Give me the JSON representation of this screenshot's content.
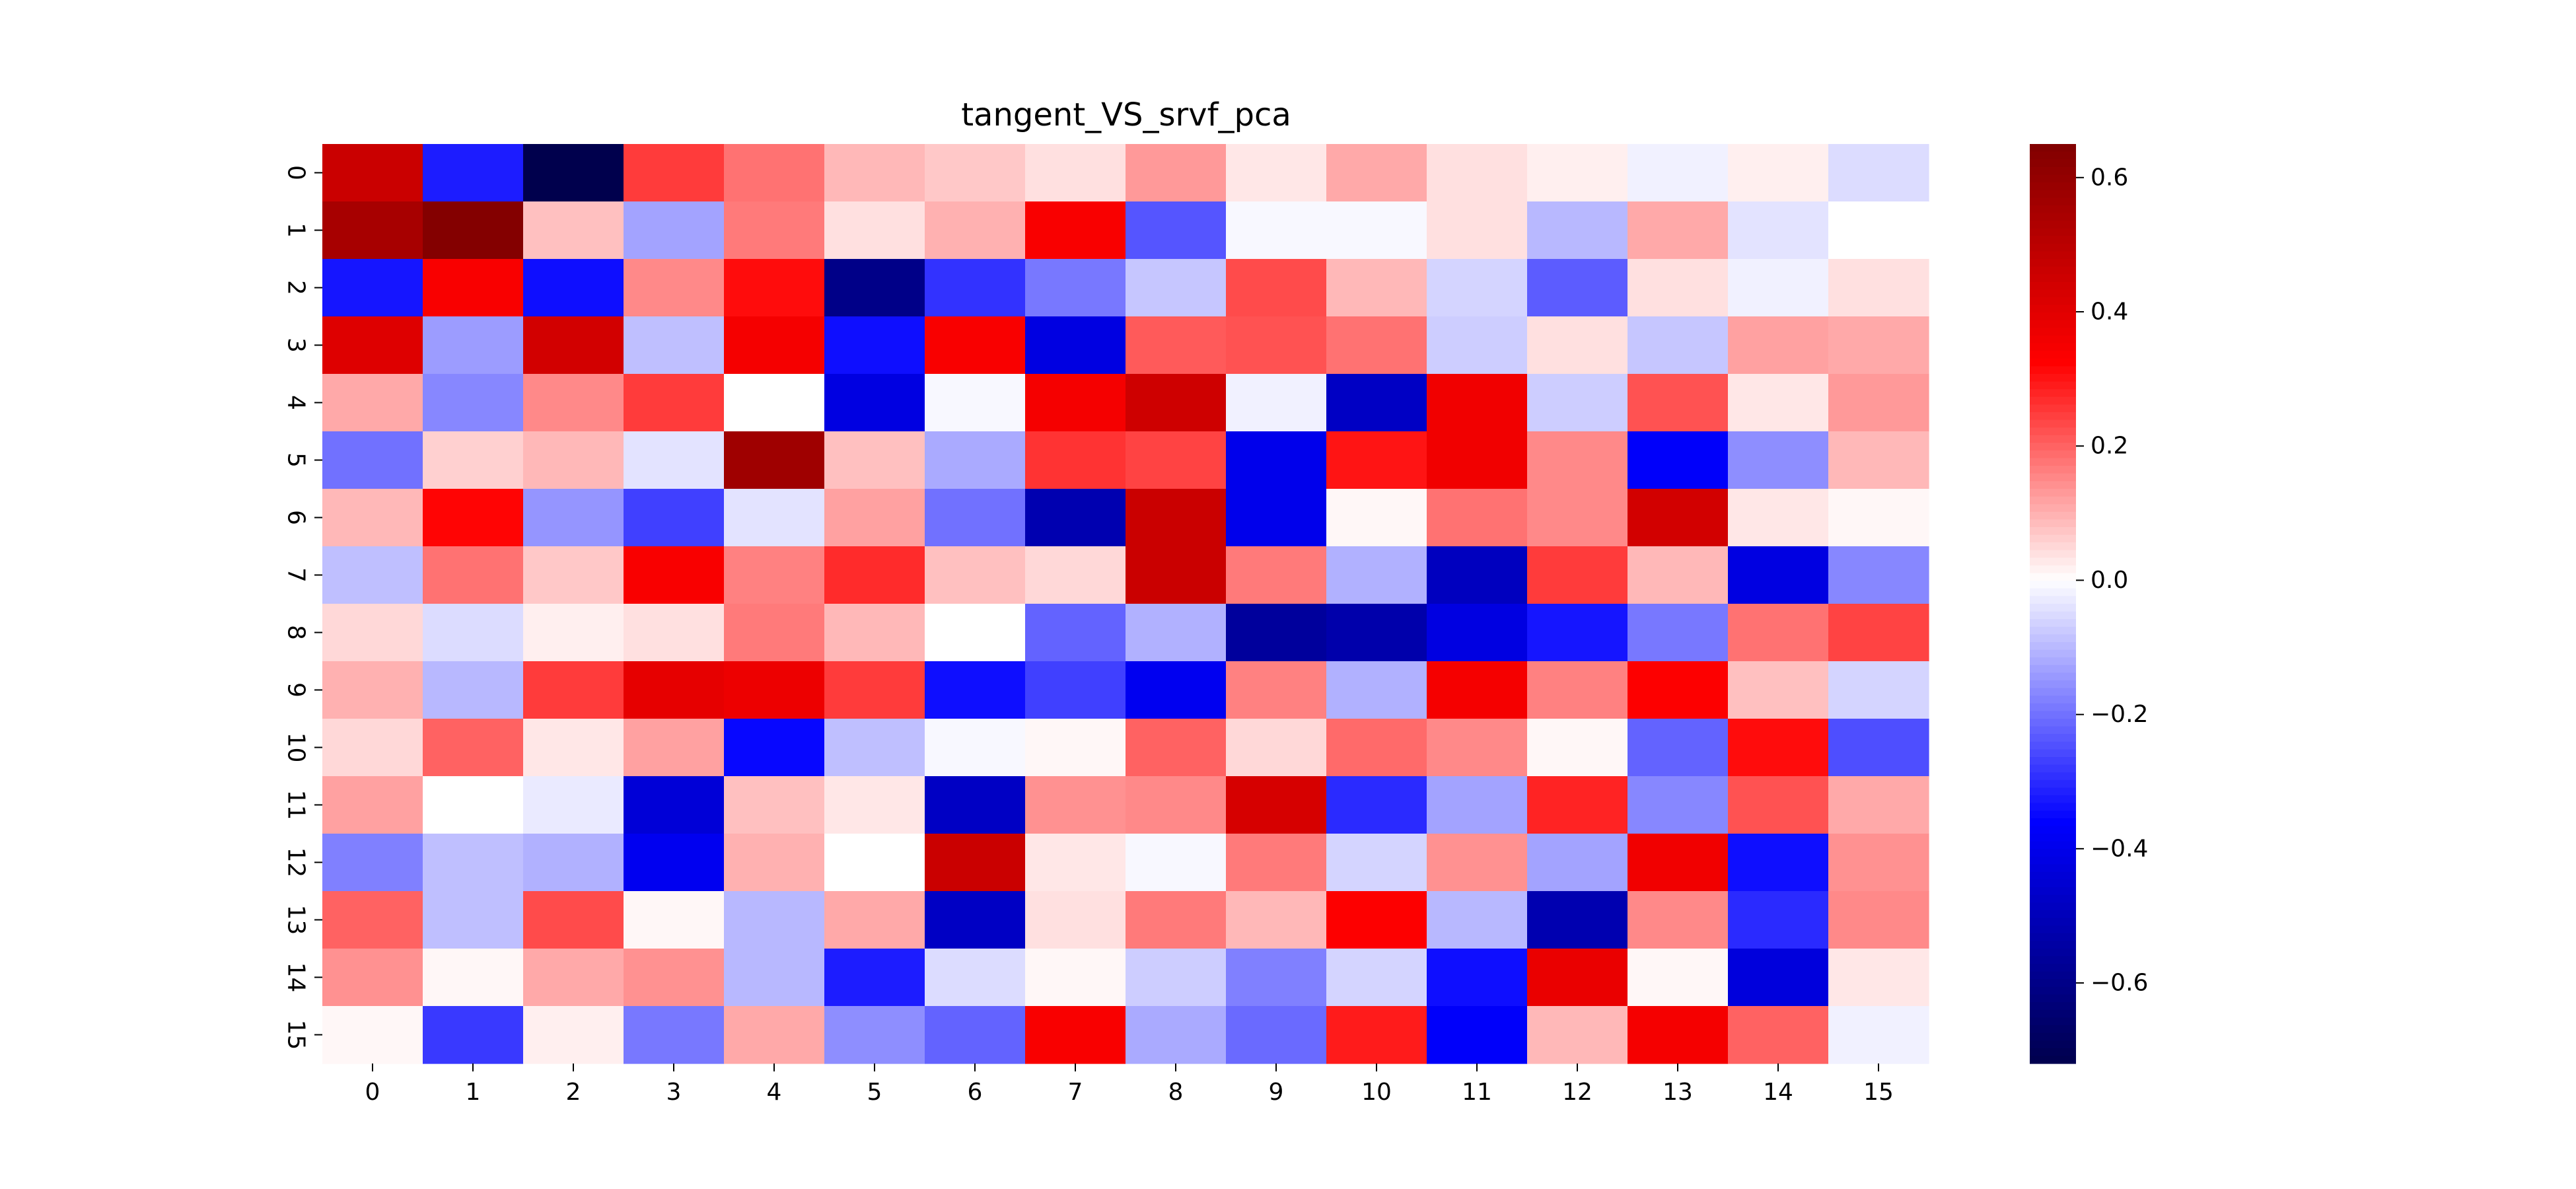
{
  "chart_data": {
    "type": "heatmap",
    "title": "tangent_VS_srvf_pca",
    "x_labels": [
      "0",
      "1",
      "2",
      "3",
      "4",
      "5",
      "6",
      "7",
      "8",
      "9",
      "10",
      "11",
      "12",
      "13",
      "14",
      "15"
    ],
    "y_labels": [
      "0",
      "1",
      "2",
      "3",
      "4",
      "5",
      "6",
      "7",
      "8",
      "9",
      "10",
      "11",
      "12",
      "13",
      "14",
      "15"
    ],
    "colormap": "seismic",
    "vmin": -0.72,
    "vmax": 0.65,
    "colorbar_ticks": [
      0.6,
      0.4,
      0.2,
      0.0,
      -0.2,
      -0.4,
      -0.6
    ],
    "colorbar_tick_labels": [
      "0.6",
      "0.4",
      "0.2",
      "0.0",
      "−0.2",
      "−0.4",
      "−0.6"
    ],
    "values": [
      [
        0.46,
        -0.32,
        -0.72,
        0.25,
        0.18,
        0.09,
        0.07,
        0.04,
        0.13,
        0.03,
        0.11,
        0.04,
        0.02,
        -0.02,
        0.02,
        -0.05
      ],
      [
        0.55,
        0.64,
        0.08,
        -0.13,
        0.17,
        0.04,
        0.1,
        0.34,
        -0.24,
        -0.01,
        -0.01,
        0.04,
        -0.1,
        0.11,
        -0.04,
        0.0
      ],
      [
        -0.33,
        0.34,
        -0.34,
        0.15,
        0.31,
        -0.6,
        -0.29,
        -0.19,
        -0.08,
        0.23,
        0.09,
        -0.06,
        -0.23,
        0.04,
        -0.02,
        0.04
      ],
      [
        0.41,
        -0.14,
        0.44,
        -0.09,
        0.35,
        -0.34,
        0.34,
        -0.42,
        0.21,
        0.22,
        0.18,
        -0.07,
        0.04,
        -0.08,
        0.12,
        0.11
      ],
      [
        0.11,
        -0.17,
        0.15,
        0.25,
        0.0,
        -0.42,
        -0.01,
        0.35,
        0.45,
        -0.02,
        -0.48,
        0.36,
        -0.07,
        0.22,
        0.03,
        0.13
      ],
      [
        -0.2,
        0.06,
        0.09,
        -0.04,
        0.57,
        0.08,
        -0.12,
        0.26,
        0.24,
        -0.4,
        0.3,
        0.36,
        0.15,
        -0.37,
        -0.16,
        0.09
      ],
      [
        0.09,
        0.32,
        -0.15,
        -0.27,
        -0.04,
        0.12,
        -0.2,
        -0.52,
        0.46,
        -0.4,
        0.01,
        0.18,
        0.15,
        0.44,
        0.03,
        0.01
      ],
      [
        -0.09,
        0.18,
        0.07,
        0.34,
        0.16,
        0.27,
        0.08,
        0.05,
        0.46,
        0.17,
        -0.11,
        -0.49,
        0.25,
        0.09,
        -0.42,
        -0.17
      ],
      [
        0.05,
        -0.05,
        0.02,
        0.04,
        0.17,
        0.09,
        0.0,
        -0.22,
        -0.11,
        -0.56,
        -0.53,
        -0.42,
        -0.33,
        -0.19,
        0.18,
        0.24
      ],
      [
        0.1,
        -0.1,
        0.25,
        0.39,
        0.37,
        0.25,
        -0.34,
        -0.27,
        -0.39,
        0.16,
        -0.11,
        0.35,
        0.16,
        0.33,
        0.08,
        -0.06
      ],
      [
        0.05,
        0.2,
        0.03,
        0.12,
        -0.35,
        -0.09,
        -0.01,
        0.01,
        0.2,
        0.05,
        0.19,
        0.15,
        0.01,
        -0.22,
        0.31,
        -0.25
      ],
      [
        0.12,
        0.0,
        -0.03,
        -0.44,
        0.08,
        0.03,
        -0.48,
        0.14,
        0.15,
        0.43,
        -0.3,
        -0.13,
        0.28,
        -0.17,
        0.22,
        0.11
      ],
      [
        -0.18,
        -0.09,
        -0.11,
        -0.39,
        0.1,
        0.0,
        0.46,
        0.03,
        -0.01,
        0.17,
        -0.06,
        0.14,
        -0.13,
        0.36,
        -0.34,
        0.14
      ],
      [
        0.2,
        -0.09,
        0.23,
        0.01,
        -0.1,
        0.11,
        -0.48,
        0.04,
        0.17,
        0.09,
        0.33,
        -0.1,
        -0.52,
        0.15,
        -0.3,
        0.15
      ],
      [
        0.14,
        0.01,
        0.11,
        0.14,
        -0.1,
        -0.32,
        -0.05,
        0.01,
        -0.07,
        -0.18,
        -0.06,
        -0.34,
        0.38,
        0.01,
        -0.43,
        0.03
      ],
      [
        0.01,
        -0.28,
        0.02,
        -0.19,
        0.11,
        -0.16,
        -0.22,
        0.34,
        -0.12,
        -0.21,
        0.29,
        -0.37,
        0.09,
        0.35,
        0.2,
        -0.02
      ]
    ]
  }
}
